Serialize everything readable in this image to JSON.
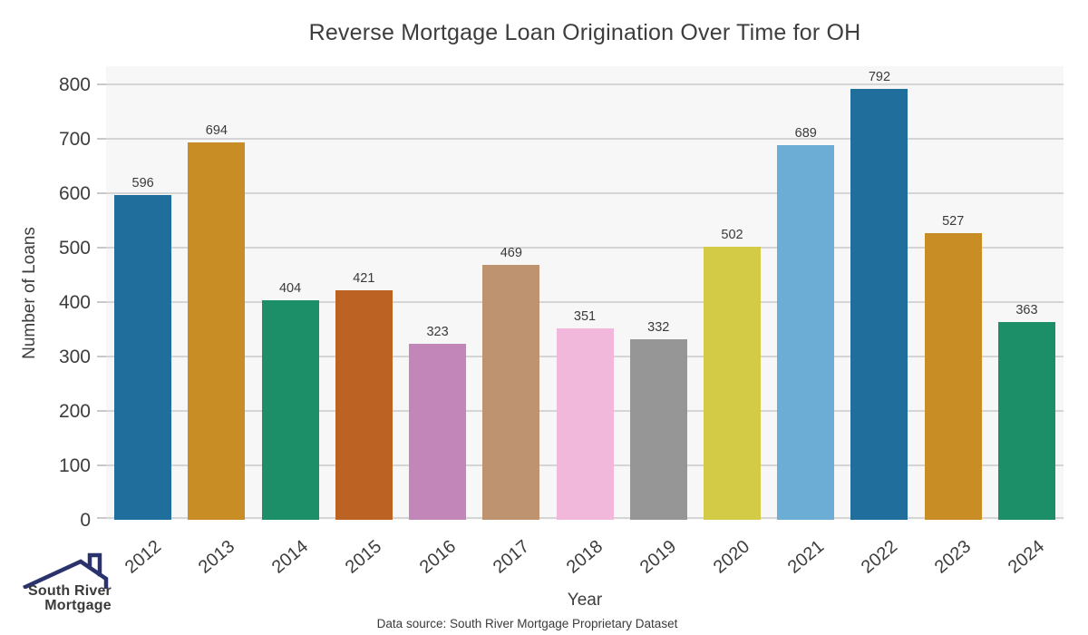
{
  "title": "Reverse Mortgage Loan Origination Over Time for OH",
  "chart_data": {
    "type": "bar",
    "title": "Reverse Mortgage Loan Origination Over Time for OH",
    "categories": [
      "2012",
      "2013",
      "2014",
      "2015",
      "2016",
      "2017",
      "2018",
      "2019",
      "2020",
      "2021",
      "2022",
      "2023",
      "2024"
    ],
    "values": [
      596,
      694,
      404,
      421,
      323,
      469,
      351,
      332,
      502,
      689,
      792,
      527,
      363
    ],
    "bar_colors": [
      "#1f6e9c",
      "#c98d26",
      "#1d8f68",
      "#bc6222",
      "#c286b9",
      "#bd946f",
      "#f2b8dc",
      "#969696",
      "#d3ca45",
      "#6cadd5",
      "#1f6e9c",
      "#c98d26",
      "#1d8f68"
    ],
    "xlabel": "Year",
    "ylabel": "Number of Loans",
    "ylim": [
      0,
      800
    ],
    "yticks": [
      0,
      100,
      200,
      300,
      400,
      500,
      600,
      700,
      800
    ],
    "grid": true,
    "legend": false,
    "plot_bg": "#f7f7f7",
    "grid_color": "#d5d5d5"
  },
  "footer": {
    "data_source": "Data source: South River Mortgage Proprietary Dataset"
  },
  "logo": {
    "line1": "South River",
    "line2": "Mortgage",
    "icon": "house-roof-icon",
    "text_color": "#3e4da6",
    "roof_color": "#2b336f"
  }
}
